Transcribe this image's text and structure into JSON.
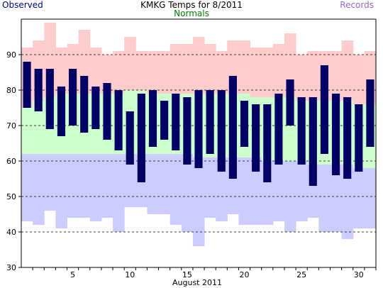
{
  "chart_data": {
    "type": "bar",
    "title": "KMKG Temps for 8/2011",
    "xlabel": "August 2011",
    "ylabel": "",
    "legend": [
      {
        "name": "Observed",
        "color": "#000080"
      },
      {
        "name": "Normals",
        "color": "#008000"
      },
      {
        "name": "Records",
        "color": "#9966cc"
      }
    ],
    "ylim": [
      30,
      100
    ],
    "xlim": [
      0.5,
      31.5
    ],
    "y_ticks": [
      30,
      40,
      50,
      60,
      70,
      80,
      90
    ],
    "x_ticks": [
      5,
      10,
      15,
      20,
      25,
      30
    ],
    "grid": "horizontal dashed at 40, 50, 60, 70, 80, 90",
    "colors": {
      "record": "#ffcccc",
      "normal": "#ccffcc",
      "lowband": "#ccccff",
      "observed": "#000066",
      "plot_bg": "#ffffff"
    },
    "days": [
      1,
      2,
      3,
      4,
      5,
      6,
      7,
      8,
      9,
      10,
      11,
      12,
      13,
      14,
      15,
      16,
      17,
      18,
      19,
      20,
      21,
      22,
      23,
      24,
      25,
      26,
      27,
      28,
      29,
      30,
      31
    ],
    "record_high": [
      92,
      94,
      99,
      92,
      93,
      97,
      92,
      90,
      91,
      95,
      91,
      91,
      91,
      93,
      93,
      95,
      93,
      91,
      94,
      94,
      92,
      92,
      93,
      96,
      90,
      91,
      91,
      91,
      94,
      90,
      91
    ],
    "normal_high": [
      75,
      77,
      78,
      79,
      79,
      79,
      79,
      79,
      79,
      80,
      80,
      79,
      79,
      79,
      79,
      79,
      79,
      79,
      79,
      79,
      78,
      78,
      78,
      78,
      77,
      77,
      77,
      77,
      77,
      76,
      76
    ],
    "normal_low": [
      62,
      62,
      62,
      62,
      62,
      62,
      62,
      62,
      62,
      62,
      62,
      62,
      62,
      62,
      62,
      61,
      61,
      61,
      61,
      61,
      61,
      60,
      60,
      60,
      60,
      59,
      59,
      59,
      59,
      58,
      58
    ],
    "record_low": [
      43,
      42,
      46,
      41,
      44,
      44,
      43,
      44,
      40,
      47,
      47,
      45,
      45,
      42,
      40,
      36,
      44,
      43,
      45,
      42,
      42,
      42,
      43,
      40,
      43,
      44,
      40,
      40,
      38,
      41,
      41
    ],
    "observed_high": [
      88,
      86,
      86,
      81,
      86,
      84,
      81,
      82,
      80,
      74,
      79,
      80,
      77,
      79,
      78,
      80,
      80,
      80,
      84,
      77,
      76,
      76,
      79,
      83,
      78,
      78,
      87,
      79,
      78,
      76,
      83
    ],
    "observed_low": [
      75,
      74,
      69,
      67,
      70,
      68,
      69,
      66,
      63,
      59,
      54,
      64,
      66,
      63,
      59,
      58,
      62,
      57,
      55,
      64,
      57,
      54,
      59,
      70,
      59,
      53,
      62,
      56,
      55,
      57,
      64
    ]
  }
}
